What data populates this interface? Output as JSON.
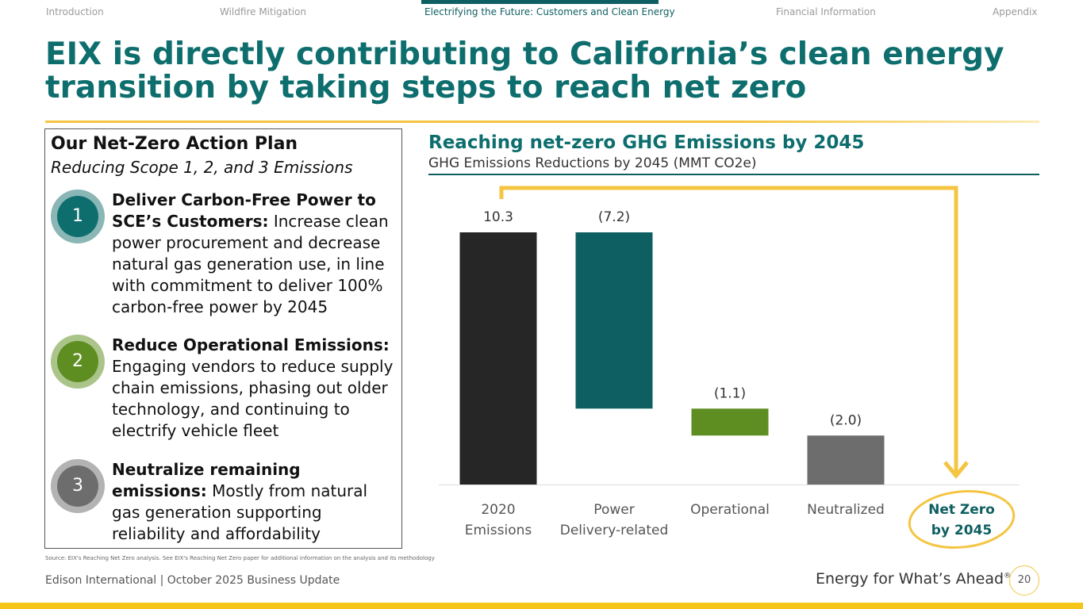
{
  "nav": {
    "tabs": [
      {
        "label": "Introduction",
        "active": false
      },
      {
        "label": "Wildfire Mitigation",
        "active": false
      },
      {
        "label": "Electrifying the Future: Customers and Clean Energy",
        "active": true
      },
      {
        "label": "Financial Information",
        "active": false
      },
      {
        "label": "Appendix",
        "active": false
      }
    ]
  },
  "title": "EIX is directly contributing to California’s clean energy transition by taking steps to reach net zero",
  "plan": {
    "title": "Our Net-Zero Action Plan",
    "subtitle": "Reducing Scope 1, 2, and 3 Emissions",
    "steps": [
      {
        "number": "1",
        "heading": "Deliver Carbon-Free Power to SCE’s Customers:",
        "body": "Increase clean power procurement and decrease natural gas generation use, in line with commitment to deliver 100% carbon-free power by 2045",
        "color": "#0e6e6e"
      },
      {
        "number": "2",
        "heading": "Reduce Operational Emissions:",
        "body": "Engaging vendors to reduce supply chain emissions, phasing out older technology, and continuing to electrify vehicle fleet",
        "color": "#5e8e22"
      },
      {
        "number": "3",
        "heading": "Neutralize remaining emissions:",
        "body": "Mostly from natural gas generation supporting reliability and affordability",
        "color": "#6d6d6d"
      }
    ]
  },
  "chart_header": {
    "title": "Reaching net-zero GHG Emissions by 2045",
    "subtitle": "GHG Emissions Reductions by 2045 (MMT CO2e)"
  },
  "chart_data": {
    "type": "bar",
    "variant": "waterfall",
    "title": "Reaching net-zero GHG Emissions by 2045",
    "subtitle": "GHG Emissions Reductions by 2045 (MMT CO2e)",
    "categories": [
      "2020 Emissions",
      "Power Delivery-related",
      "Operational",
      "Neutralized",
      "Net Zero by 2045"
    ],
    "values": [
      10.3,
      -7.2,
      -1.1,
      -2.0,
      0
    ],
    "data_labels": [
      "10.3",
      "(7.2)",
      "(1.1)",
      "(2.0)",
      ""
    ],
    "colors": [
      "#262626",
      "#0e5f62",
      "#5e8e22",
      "#6d6d6d",
      "#f4c542"
    ],
    "highlight_category": "Net Zero by 2045",
    "ylim": [
      0,
      10.3
    ],
    "grid": false,
    "legend": "none"
  },
  "source": "Source: EIX's Reaching Net Zero analysis. See EIX's Reaching Net Zero paper for additional information on the analysis and its methodology",
  "footer": {
    "company": "Edison International |  October 2025 Business Update",
    "tagline": "Energy for What’s Ahead",
    "tagline_mark": "®",
    "page": "20"
  },
  "colors": {
    "accent": "#0e6e6e",
    "gold": "#f4c542",
    "bottom_bar": "#f5c518"
  }
}
